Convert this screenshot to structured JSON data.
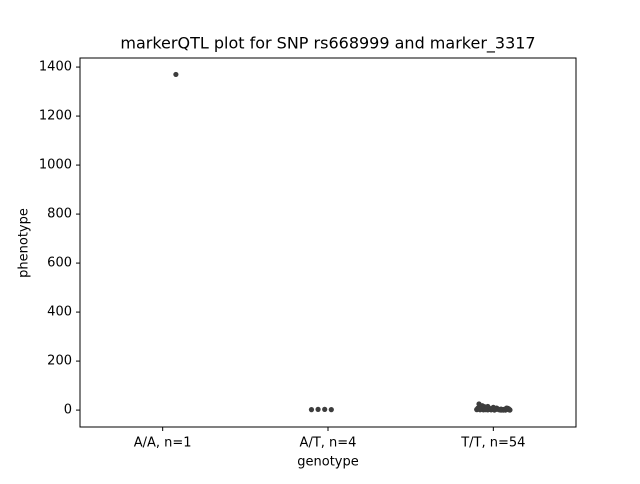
{
  "chart_data": {
    "type": "strip",
    "title": "markerQTL plot for SNP rs668999 and marker_3317",
    "x_label": "genotype",
    "y_label": "phenotype",
    "categories": [
      "A/A, n=1",
      "A/T, n=4",
      "T/T, n=54"
    ],
    "points": [
      [
        1370
      ],
      [
        2,
        3,
        3,
        2
      ],
      [
        3,
        1,
        5,
        8,
        2,
        0,
        12,
        4,
        6,
        1,
        2,
        9,
        15,
        3,
        0,
        7,
        2,
        5,
        11,
        1,
        4,
        25,
        6,
        3,
        2,
        0,
        8,
        14,
        1,
        5,
        3,
        2,
        10,
        6,
        4,
        0,
        1,
        18,
        7,
        3,
        2,
        5,
        9,
        1,
        0,
        4,
        6,
        2,
        12,
        3,
        1,
        8,
        5,
        2
      ]
    ],
    "color": "#3d3d3d",
    "ylim": [
      -69,
      1437
    ],
    "yticks": [
      0,
      200,
      400,
      600,
      800,
      1000,
      1200,
      1400
    ]
  }
}
